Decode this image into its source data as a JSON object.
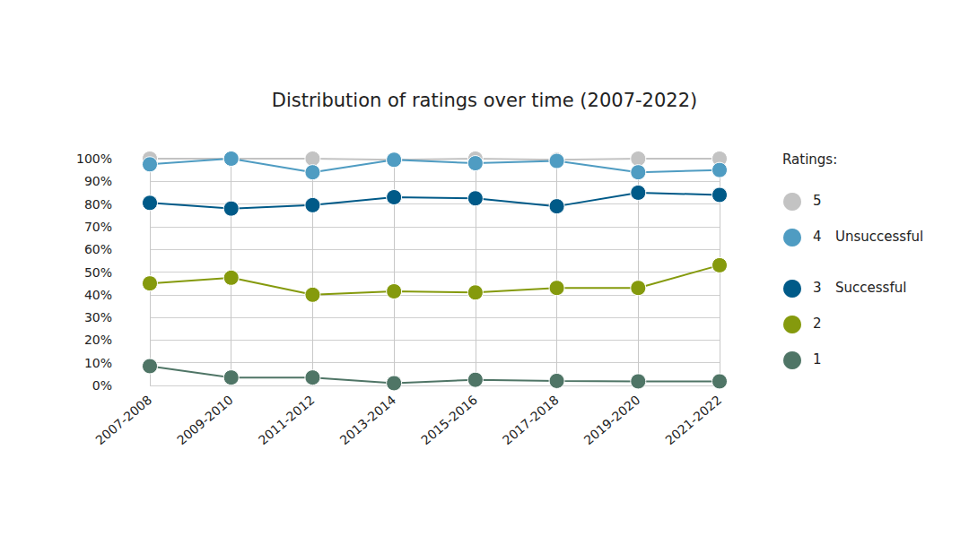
{
  "chart_data": {
    "type": "line",
    "title": "Distribution of ratings over time (2007-2022)",
    "legend_title": "Ratings:",
    "legend": "right",
    "grid": true,
    "marker": "circle",
    "categories": [
      "2007-2008",
      "2009-2010",
      "2011-2012",
      "2013-2014",
      "2015-2016",
      "2017-2018",
      "2019-2020",
      "2021-2022"
    ],
    "series": [
      {
        "name": "5",
        "color": "#c3c3c3",
        "values": [
          100,
          100,
          100,
          99.5,
          100,
          99.5,
          100,
          100
        ]
      },
      {
        "name": "4",
        "annotation": "Unsuccessful",
        "color": "#4f9cc2",
        "values": [
          97.5,
          100,
          94,
          99.5,
          98,
          99,
          94,
          95
        ]
      },
      {
        "name": "3",
        "annotation": "Successful",
        "color": "#005a88",
        "values": [
          80.5,
          78,
          79.5,
          83,
          82.5,
          79,
          85,
          84
        ]
      },
      {
        "name": "2",
        "color": "#859a0d",
        "values": [
          45,
          47.5,
          40,
          41.5,
          41,
          43,
          43,
          53
        ]
      },
      {
        "name": "1",
        "color": "#4f7566",
        "values": [
          8.5,
          3.5,
          3.5,
          1,
          2.5,
          2,
          1.8,
          1.8
        ]
      }
    ],
    "ylim": [
      0,
      100
    ],
    "yticks": [
      {
        "value": 0,
        "label": "0%"
      },
      {
        "value": 10,
        "label": "10%"
      },
      {
        "value": 20,
        "label": "20%"
      },
      {
        "value": 30,
        "label": "30%"
      },
      {
        "value": 40,
        "label": "40%"
      },
      {
        "value": 50,
        "label": "50%"
      },
      {
        "value": 60,
        "label": "60%"
      },
      {
        "value": 70,
        "label": "70%"
      },
      {
        "value": 80,
        "label": "80%"
      },
      {
        "value": 90,
        "label": "90%"
      },
      {
        "value": 100,
        "label": "100%"
      }
    ]
  }
}
